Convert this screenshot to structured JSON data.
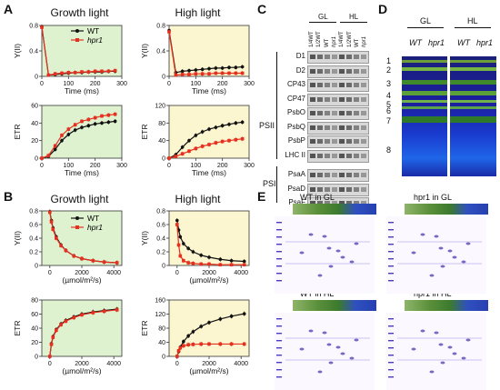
{
  "panels": {
    "A": "A",
    "B": "B",
    "C": "C",
    "D": "D",
    "E": "E"
  },
  "titles": {
    "growth_light": "Growth light",
    "high_light": "High light"
  },
  "legend": {
    "wt": "WT",
    "hpr1": "hpr1"
  },
  "colors": {
    "wt": "#111111",
    "hpr1": "#e53020",
    "green_bg": "#dff2d0",
    "yellow_bg": "#fbf6cf"
  },
  "chart_data": [
    {
      "id": "A-YII-GL",
      "type": "line",
      "xlabel": "Time (ms)",
      "ylabel": "Y(II)",
      "xlim": [
        0,
        300
      ],
      "ylim": [
        0,
        0.8
      ],
      "xticks": [
        0,
        100,
        200,
        300
      ],
      "yticks": [
        0,
        0.4,
        0.8
      ],
      "background": "green",
      "series": [
        {
          "name": "WT",
          "x": [
            0,
            25,
            50,
            75,
            100,
            125,
            150,
            175,
            200,
            225,
            250,
            275
          ],
          "y": [
            0.78,
            0.02,
            0.03,
            0.04,
            0.05,
            0.06,
            0.06,
            0.07,
            0.07,
            0.07,
            0.08,
            0.08
          ]
        },
        {
          "name": "hpr1",
          "x": [
            0,
            25,
            50,
            75,
            100,
            125,
            150,
            175,
            200,
            225,
            250,
            275
          ],
          "y": [
            0.77,
            0.02,
            0.04,
            0.05,
            0.06,
            0.06,
            0.07,
            0.07,
            0.08,
            0.08,
            0.08,
            0.09
          ]
        }
      ]
    },
    {
      "id": "A-YII-HL",
      "type": "line",
      "xlabel": "Time (ms)",
      "ylabel": "Y(II)",
      "xlim": [
        0,
        300
      ],
      "ylim": [
        0,
        0.8
      ],
      "xticks": [
        0,
        100,
        200,
        300
      ],
      "yticks": [
        0,
        0.4,
        0.8
      ],
      "background": "yellow",
      "series": [
        {
          "name": "WT",
          "x": [
            0,
            25,
            50,
            75,
            100,
            125,
            150,
            175,
            200,
            225,
            250,
            275
          ],
          "y": [
            0.72,
            0.06,
            0.08,
            0.09,
            0.1,
            0.11,
            0.12,
            0.13,
            0.13,
            0.14,
            0.14,
            0.15
          ]
        },
        {
          "name": "hpr1",
          "x": [
            0,
            25,
            50,
            75,
            100,
            125,
            150,
            175,
            200,
            225,
            250,
            275
          ],
          "y": [
            0.7,
            0.02,
            0.03,
            0.03,
            0.04,
            0.04,
            0.04,
            0.05,
            0.05,
            0.05,
            0.05,
            0.05
          ]
        }
      ]
    },
    {
      "id": "A-ETR-GL",
      "type": "line",
      "xlabel": "Time (ms)",
      "ylabel": "ETR",
      "xlim": [
        0,
        300
      ],
      "ylim": [
        0,
        60
      ],
      "xticks": [
        0,
        100,
        200,
        300
      ],
      "yticks": [
        0,
        20,
        40,
        60
      ],
      "background": "green",
      "series": [
        {
          "name": "WT",
          "x": [
            0,
            25,
            50,
            75,
            100,
            125,
            150,
            175,
            200,
            225,
            250,
            275
          ],
          "y": [
            0,
            2,
            10,
            20,
            27,
            32,
            35,
            37,
            39,
            40,
            41,
            42
          ]
        },
        {
          "name": "hpr1",
          "x": [
            0,
            25,
            50,
            75,
            100,
            125,
            150,
            175,
            200,
            225,
            250,
            275
          ],
          "y": [
            0,
            3,
            14,
            26,
            33,
            38,
            42,
            44,
            46,
            48,
            49,
            50
          ]
        }
      ]
    },
    {
      "id": "A-ETR-HL",
      "type": "line",
      "xlabel": "Time (ms)",
      "ylabel": "ETR",
      "xlim": [
        0,
        300
      ],
      "ylim": [
        0,
        120
      ],
      "xticks": [
        0,
        100,
        200,
        300
      ],
      "yticks": [
        0,
        40,
        80,
        120
      ],
      "background": "yellow",
      "series": [
        {
          "name": "WT",
          "x": [
            0,
            25,
            50,
            75,
            100,
            125,
            150,
            175,
            200,
            225,
            250,
            275
          ],
          "y": [
            0,
            8,
            25,
            40,
            52,
            60,
            66,
            70,
            74,
            77,
            80,
            82
          ]
        },
        {
          "name": "hpr1",
          "x": [
            0,
            25,
            50,
            75,
            100,
            125,
            150,
            175,
            200,
            225,
            250,
            275
          ],
          "y": [
            0,
            4,
            10,
            16,
            22,
            27,
            31,
            35,
            38,
            40,
            42,
            44
          ]
        }
      ]
    },
    {
      "id": "B-YII-GL",
      "type": "line",
      "xlabel": "(µmol/m²/s)",
      "ylabel": "Y(II)",
      "xlim": [
        -500,
        4500
      ],
      "ylim": [
        0,
        0.8
      ],
      "xticks": [
        0,
        2000,
        4000
      ],
      "yticks": [
        0,
        0.2,
        0.4,
        0.6,
        0.8
      ],
      "background": "green",
      "series": [
        {
          "name": "WT",
          "x": [
            0,
            100,
            200,
            400,
            700,
            1000,
            1500,
            2000,
            2700,
            3400,
            4200
          ],
          "y": [
            0.79,
            0.66,
            0.55,
            0.42,
            0.3,
            0.22,
            0.14,
            0.1,
            0.07,
            0.05,
            0.04
          ]
        },
        {
          "name": "hpr1",
          "x": [
            0,
            100,
            200,
            400,
            700,
            1000,
            1500,
            2000,
            2700,
            3400,
            4200
          ],
          "y": [
            0.78,
            0.64,
            0.53,
            0.4,
            0.29,
            0.22,
            0.14,
            0.1,
            0.07,
            0.05,
            0.04
          ]
        }
      ]
    },
    {
      "id": "B-YII-HL",
      "type": "line",
      "xlabel": "(µmol/m²/s)",
      "ylabel": "Y(II)",
      "xlim": [
        -500,
        4500
      ],
      "ylim": [
        0,
        0.8
      ],
      "xticks": [
        0,
        2000,
        4000
      ],
      "yticks": [
        0,
        0.2,
        0.4,
        0.6,
        0.8
      ],
      "background": "yellow",
      "series": [
        {
          "name": "WT",
          "x": [
            0,
            100,
            200,
            400,
            700,
            1000,
            1500,
            2000,
            2700,
            3400,
            4200
          ],
          "y": [
            0.66,
            0.52,
            0.42,
            0.32,
            0.25,
            0.2,
            0.15,
            0.12,
            0.09,
            0.07,
            0.06
          ]
        },
        {
          "name": "hpr1",
          "x": [
            0,
            100,
            200,
            400,
            700,
            1000,
            1500,
            2000,
            2700,
            3400,
            4200
          ],
          "y": [
            0.6,
            0.3,
            0.14,
            0.07,
            0.04,
            0.03,
            0.02,
            0.02,
            0.01,
            0.01,
            0.01
          ]
        }
      ]
    },
    {
      "id": "B-ETR-GL",
      "type": "line",
      "xlabel": "(µmol/m²/s)",
      "ylabel": "ETR",
      "xlim": [
        -500,
        4500
      ],
      "ylim": [
        0,
        80
      ],
      "xticks": [
        0,
        2000,
        4000
      ],
      "yticks": [
        0,
        20,
        40,
        60,
        80
      ],
      "background": "green",
      "series": [
        {
          "name": "WT",
          "x": [
            0,
            100,
            200,
            400,
            700,
            1000,
            1500,
            2000,
            2700,
            3400,
            4200
          ],
          "y": [
            0,
            18,
            28,
            38,
            46,
            51,
            56,
            60,
            63,
            65,
            67
          ]
        },
        {
          "name": "hpr1",
          "x": [
            0,
            100,
            200,
            400,
            700,
            1000,
            1500,
            2000,
            2700,
            3400,
            4200
          ],
          "y": [
            0,
            17,
            27,
            37,
            45,
            50,
            55,
            59,
            62,
            64,
            66
          ]
        }
      ]
    },
    {
      "id": "B-ETR-HL",
      "type": "line",
      "xlabel": "(µmol/m²/s)",
      "ylabel": "ETR",
      "xlim": [
        -500,
        4500
      ],
      "ylim": [
        0,
        160
      ],
      "xticks": [
        0,
        2000,
        4000
      ],
      "yticks": [
        0,
        40,
        80,
        120,
        160
      ],
      "background": "yellow",
      "series": [
        {
          "name": "WT",
          "x": [
            0,
            100,
            200,
            400,
            700,
            1000,
            1500,
            2000,
            2700,
            3400,
            4200
          ],
          "y": [
            0,
            14,
            26,
            42,
            58,
            70,
            85,
            96,
            106,
            114,
            121
          ]
        },
        {
          "name": "hpr1",
          "x": [
            0,
            100,
            200,
            400,
            700,
            1000,
            1500,
            2000,
            2700,
            3400,
            4200
          ],
          "y": [
            0,
            16,
            24,
            30,
            33,
            34,
            35,
            35,
            35,
            35,
            35
          ]
        }
      ]
    }
  ],
  "panelC": {
    "group_gl": "GL",
    "group_hl": "HL",
    "lanes": [
      "1/4WT",
      "1/2WT",
      "WT",
      "hpr1",
      "1/4WT",
      "1/2WT",
      "WT",
      "hpr1"
    ],
    "proteins": [
      "D1",
      "D2",
      "CP43",
      "CP47",
      "PsbO",
      "PsbQ",
      "PsbP",
      "LHC II",
      "PsaA",
      "PsaD",
      "PsaF"
    ],
    "groups": [
      "PSII",
      "PSI"
    ]
  },
  "panelD": {
    "group_gl": "GL",
    "group_hl": "HL",
    "lanes": [
      "WT",
      "hpr1",
      "WT",
      "hpr1"
    ],
    "bands": [
      "1",
      "2",
      "3",
      "4",
      "5",
      "6",
      "7",
      "8"
    ]
  },
  "panelE": {
    "titles": [
      "WT in GL",
      "hpr1 in GL",
      "WT in HL",
      "hpr1 in HL"
    ]
  }
}
